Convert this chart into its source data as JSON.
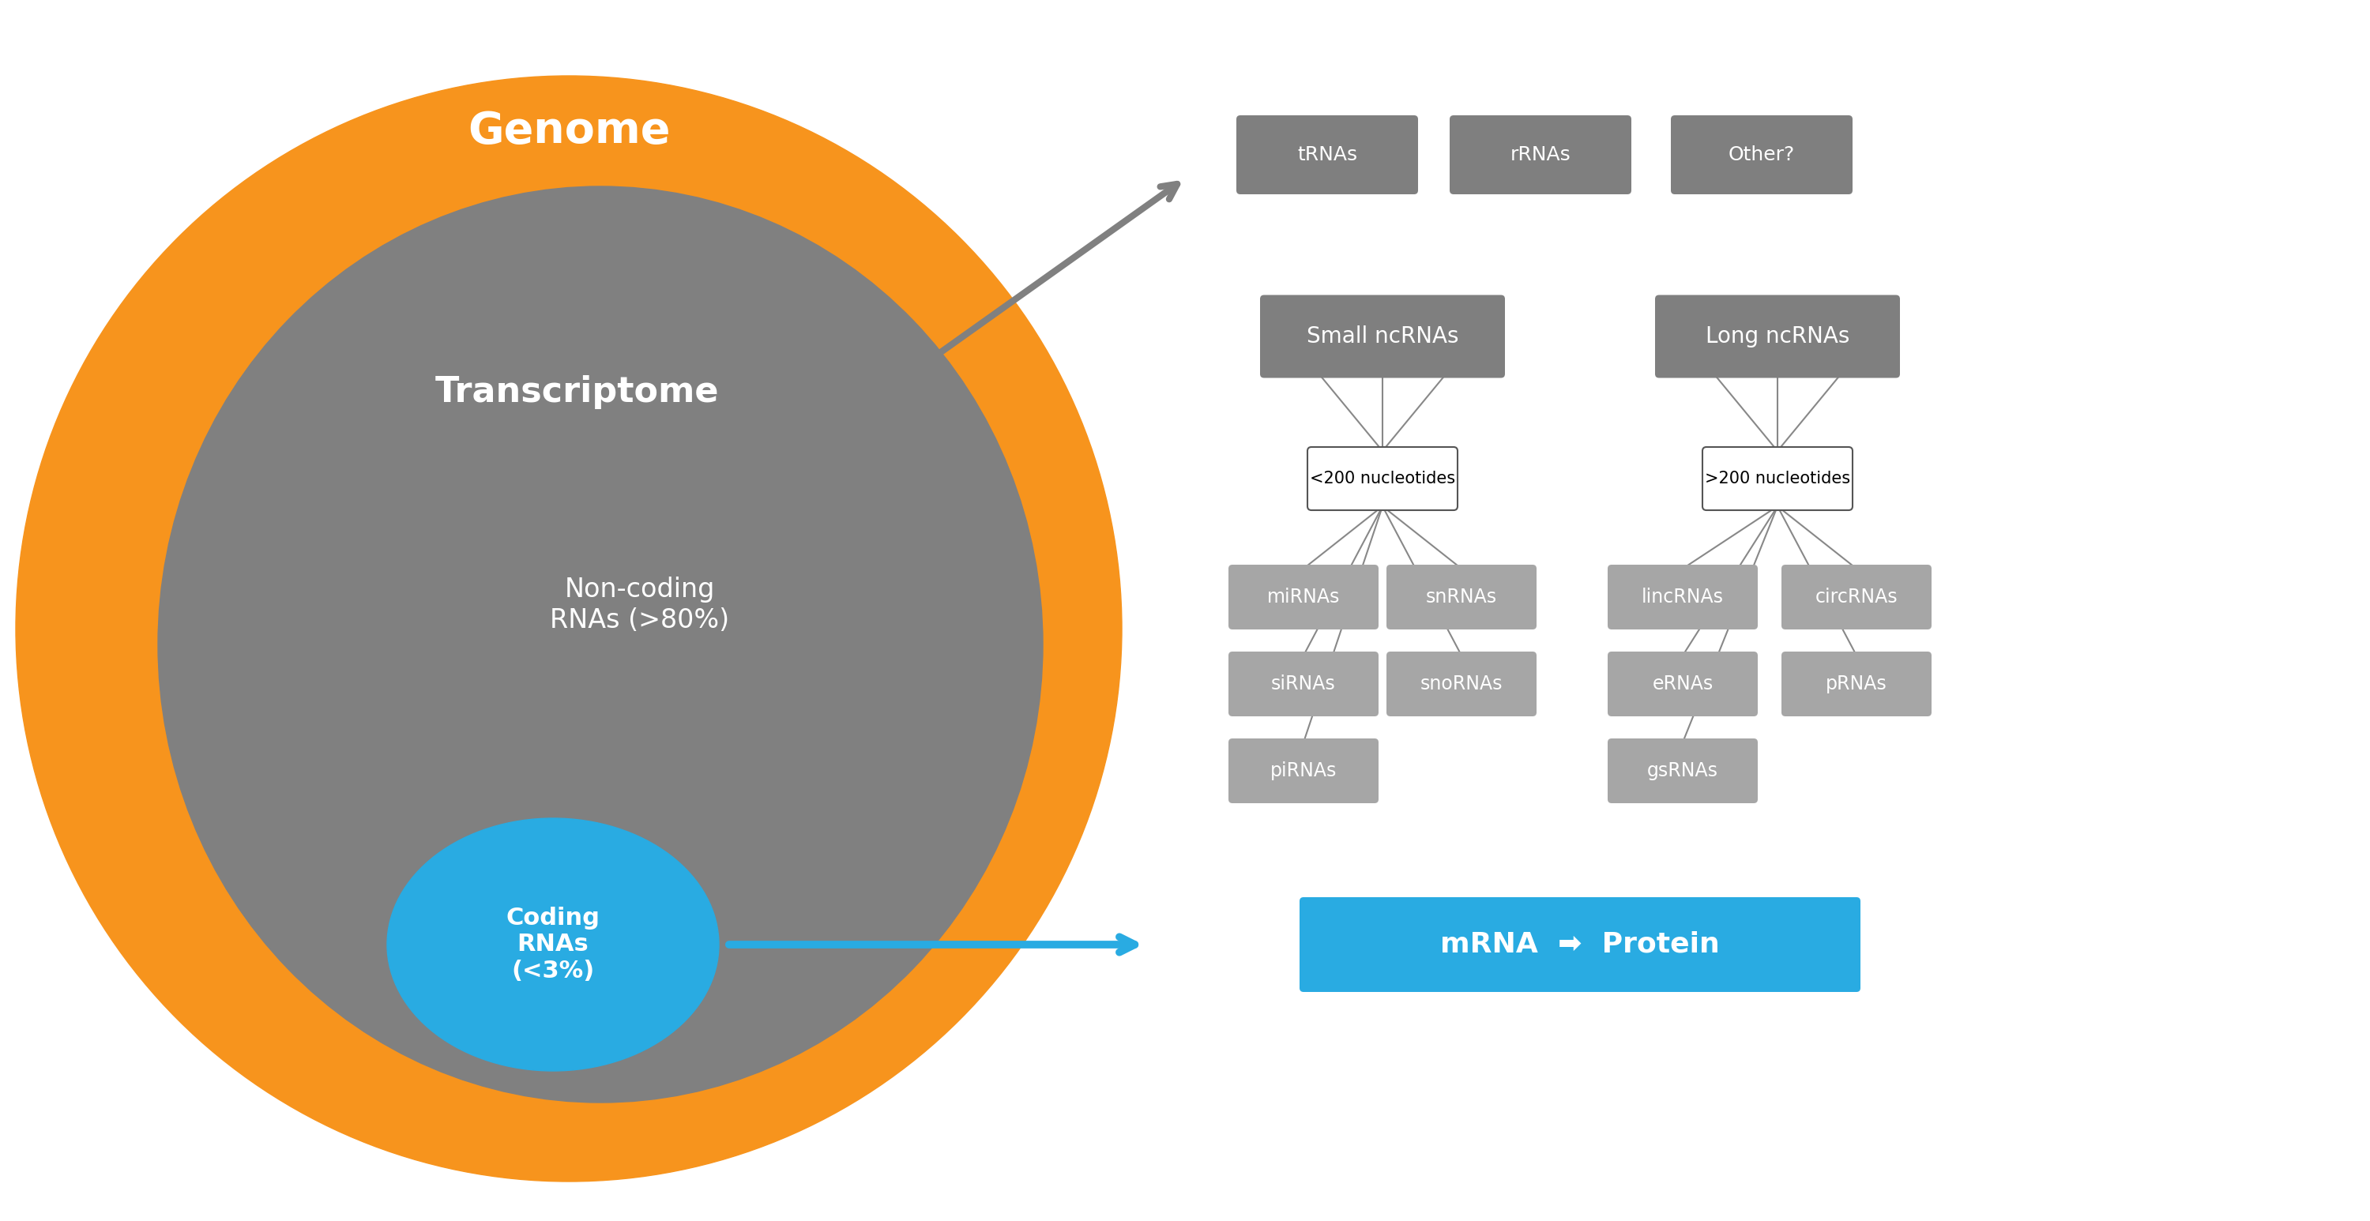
{
  "bg_color": "#ffffff",
  "orange_color": "#F7941D",
  "gray_circle_color": "#808080",
  "blue_circle_color": "#29ABE2",
  "dark_gray_box_color": "#7F7F7F",
  "light_gray_box_color": "#A6A6A6",
  "white_box_color": "#FFFFFF",
  "blue_box_color": "#29ABE2",
  "genome_label": "Genome",
  "transcriptome_label": "Transcriptome",
  "noncoding_label": "Non-coding\nRNAs (>80%)",
  "coding_label": "Coding\nRNAs\n(<3%)",
  "mrna_protein_label": "mRNA ➡ Protein",
  "small_ncrna_label": "Small ncRNAs",
  "long_ncrna_label": "Long ncRNAs",
  "small_nt_label": "<200 nucleotides",
  "long_nt_label": ">200 nucleotides",
  "top_labels": [
    "tRNAs",
    "rRNAs",
    "Other?"
  ],
  "small_children": [
    "miRNAs",
    "snRNAs",
    "siRNAs",
    "snoRNAs",
    "piRNAs"
  ],
  "long_children": [
    "lincRNAs",
    "circRNAs",
    "eRNAs",
    "pRNAs",
    "gsRNAs"
  ]
}
